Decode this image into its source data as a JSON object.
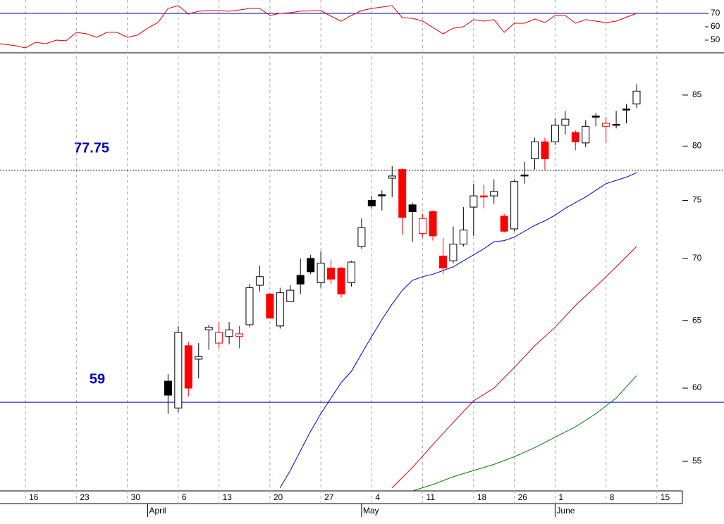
{
  "chart_data": [
    {
      "type": "line",
      "ylim": [
        40.5,
        80
      ],
      "yticks": [
        50,
        60,
        70
      ],
      "hlines": [
        {
          "value": 70,
          "color": "#0000cc"
        }
      ],
      "series": [
        {
          "color": "#e00000",
          "x": [
            -2.5,
            -1,
            0,
            1,
            2,
            3,
            4,
            5,
            6,
            7,
            8,
            9,
            10,
            11,
            12,
            13,
            14,
            15,
            16,
            17,
            18,
            19,
            20,
            21,
            22,
            23,
            24,
            25,
            26,
            27,
            29,
            30,
            31,
            32,
            33,
            34,
            36,
            37,
            38,
            39,
            41,
            42,
            43,
            44,
            45,
            46,
            47,
            48,
            49,
            50,
            51,
            52,
            53,
            54,
            55,
            56,
            57,
            58,
            60
          ],
          "values": [
            47.3,
            45.8,
            44.2,
            48.4,
            47.3,
            50.0,
            49.5,
            55.8,
            54.7,
            52.1,
            55.8,
            55.8,
            52.1,
            53.7,
            58.9,
            63.1,
            73.7,
            75.8,
            69.5,
            71.6,
            72.1,
            72.1,
            71.6,
            72.6,
            73.7,
            73.7,
            68.4,
            70.0,
            70.5,
            71.6,
            72.1,
            67.9,
            64.2,
            68.4,
            72.1,
            73.7,
            75.8,
            66.8,
            66.3,
            64.2,
            54.7,
            58.9,
            60.0,
            65.3,
            64.2,
            65.3,
            55.8,
            62.6,
            62.6,
            65.8,
            63.1,
            68.4,
            68.4,
            62.6,
            65.3,
            64.2,
            63.1,
            64.2,
            70.0
          ]
        }
      ]
    },
    {
      "type": "candlestick",
      "log_scale": true,
      "xlim": [
        -2.5,
        64.5
      ],
      "ylim": [
        53.1,
        89.3
      ],
      "yticks": [
        55,
        60,
        65,
        70,
        75,
        80,
        85
      ],
      "xticks": [
        {
          "value": 0,
          "label": "16"
        },
        {
          "value": 5,
          "label": "23"
        },
        {
          "value": 10,
          "label": "30"
        },
        {
          "value": 15,
          "label": "6"
        },
        {
          "value": 19,
          "label": "13"
        },
        {
          "value": 24,
          "label": "20"
        },
        {
          "value": 29,
          "label": "27"
        },
        {
          "value": 34,
          "label": "4"
        },
        {
          "value": 39,
          "label": "11"
        },
        {
          "value": 44,
          "label": "18"
        },
        {
          "value": 48,
          "label": "26"
        },
        {
          "value": 52,
          "label": "1"
        },
        {
          "value": 57,
          "label": "8"
        },
        {
          "value": 62,
          "label": "15"
        }
      ],
      "month_ticks": [
        {
          "value": 12,
          "label": "April"
        },
        {
          "value": 33,
          "label": "May"
        },
        {
          "value": 52,
          "label": "June"
        }
      ],
      "grid": true,
      "hlines": [
        {
          "value": 77.75,
          "color": "#000000",
          "dashed": true
        },
        {
          "value": 59,
          "color": "#0000cc",
          "dashed": false
        }
      ],
      "x": [
        14,
        15,
        16,
        17,
        18,
        19,
        20,
        21,
        22,
        23,
        24,
        25,
        26,
        27,
        28,
        29,
        30,
        31,
        32,
        33,
        34,
        35,
        36,
        37,
        38,
        39,
        40,
        41,
        42,
        43,
        44,
        45,
        46,
        47,
        48,
        49,
        50,
        51,
        52,
        53,
        54,
        55,
        56,
        57,
        58,
        59,
        60
      ],
      "open": [
        60.5,
        58.6,
        63.1,
        62.1,
        64.3,
        63.3,
        63.8,
        63.8,
        64.7,
        67.8,
        67.1,
        64.6,
        66.5,
        68.6,
        70.0,
        68.0,
        69.2,
        69.2,
        68.0,
        71.0,
        75.0,
        75.5,
        77.0,
        77.8,
        74.6,
        73.4,
        74.0,
        70.2,
        69.8,
        71.2,
        74.4,
        75.4,
        75.4,
        73.6,
        72.5,
        77.3,
        78.8,
        80.4,
        80.4,
        82.0,
        81.3,
        80.3,
        82.9,
        81.9,
        82.1,
        83.6,
        84.1
      ],
      "high": [
        61.0,
        64.6,
        63.4,
        63.3,
        64.7,
        64.9,
        64.9,
        64.6,
        67.9,
        69.4,
        67.2,
        67.6,
        67.8,
        70.0,
        70.3,
        70.6,
        69.9,
        69.3,
        69.8,
        73.4,
        75.4,
        75.9,
        78.1,
        77.9,
        74.8,
        73.8,
        74.1,
        71.7,
        72.7,
        74.4,
        76.5,
        76.4,
        76.9,
        73.8,
        76.9,
        78.5,
        80.8,
        80.8,
        82.7,
        83.4,
        81.5,
        82.5,
        83.2,
        82.8,
        83.4,
        84.1,
        86.1
      ],
      "low": [
        58.2,
        58.3,
        59.4,
        60.7,
        62.8,
        62.9,
        63.2,
        62.9,
        64.5,
        67.3,
        65.2,
        64.4,
        66.5,
        67.1,
        68.7,
        67.6,
        67.9,
        66.8,
        67.7,
        70.8,
        74.3,
        74.1,
        75.3,
        72.0,
        71.4,
        71.8,
        71.5,
        68.7,
        69.6,
        71.0,
        71.9,
        74.3,
        74.7,
        72.2,
        72.3,
        76.5,
        77.8,
        77.8,
        80.1,
        81.1,
        79.6,
        79.9,
        81.9,
        80.3,
        81.7,
        82.2,
        83.7
      ],
      "close": [
        59.5,
        64.1,
        60.0,
        62.3,
        64.5,
        64.1,
        64.3,
        64.0,
        67.6,
        68.5,
        65.2,
        67.2,
        67.4,
        67.9,
        68.9,
        69.6,
        68.3,
        67.1,
        69.7,
        72.6,
        74.5,
        75.5,
        77.2,
        73.5,
        74.0,
        72.1,
        71.9,
        69.2,
        71.2,
        72.4,
        75.4,
        75.3,
        75.8,
        72.3,
        76.7,
        77.3,
        80.4,
        78.8,
        82.0,
        82.6,
        80.4,
        81.9,
        82.8,
        82.2,
        82.1,
        83.5,
        85.4
      ],
      "fills": [
        "#000000",
        "#ffffff",
        "#ff0000",
        "#ffffff",
        "#ffffff",
        "#ffffff",
        "#ffffff",
        "#ffffff",
        "#ffffff",
        "#ffffff",
        "#ff0000",
        "#ffffff",
        "#ffffff",
        "#000000",
        "#000000",
        "#ffffff",
        "#ff0000",
        "#ff0000",
        "#ffffff",
        "#ffffff",
        "#000000",
        "#000000",
        "#ffffff",
        "#ff0000",
        "#000000",
        "#ffffff",
        "#ff0000",
        "#ff0000",
        "#ffffff",
        "#ffffff",
        "#ffffff",
        "#ff0000",
        "#ffffff",
        "#ff0000",
        "#ffffff",
        "#000000",
        "#ffffff",
        "#ff0000",
        "#ffffff",
        "#ffffff",
        "#ff0000",
        "#ffffff",
        "#000000",
        "#ffffff",
        "#000000",
        "#000000",
        "#ffffff"
      ],
      "edges": [
        "#000000",
        "#000000",
        "#ff0000",
        "#000000",
        "#000000",
        "#ff0000",
        "#000000",
        "#ff0000",
        "#000000",
        "#000000",
        "#ff0000",
        "#000000",
        "#000000",
        "#000000",
        "#000000",
        "#000000",
        "#ff0000",
        "#ff0000",
        "#000000",
        "#000000",
        "#000000",
        "#000000",
        "#000000",
        "#ff0000",
        "#000000",
        "#ff0000",
        "#ff0000",
        "#ff0000",
        "#000000",
        "#000000",
        "#000000",
        "#ff0000",
        "#000000",
        "#ff0000",
        "#000000",
        "#000000",
        "#000000",
        "#ff0000",
        "#000000",
        "#000000",
        "#ff0000",
        "#000000",
        "#000000",
        "#ff0000",
        "#000000",
        "#000000",
        "#000000"
      ],
      "series": [
        {
          "color": "#0000cc",
          "x": [
            25,
            26,
            27,
            28,
            29,
            30,
            31,
            32,
            33,
            34,
            35,
            36,
            37,
            38,
            39,
            40,
            41,
            42,
            43,
            44,
            45,
            46,
            47,
            48,
            49,
            50,
            51,
            52,
            53,
            54,
            55,
            56,
            57,
            58,
            59,
            60
          ],
          "values": [
            53.3,
            54.4,
            55.7,
            57.0,
            58.2,
            59.3,
            60.4,
            61.2,
            62.5,
            63.8,
            65.1,
            66.3,
            67.4,
            68.2,
            68.5,
            68.7,
            69.0,
            69.3,
            69.8,
            70.3,
            70.8,
            71.4,
            71.5,
            71.8,
            72.3,
            72.8,
            73.2,
            73.7,
            74.3,
            74.8,
            75.3,
            75.9,
            76.5,
            76.8,
            77.1,
            77.5
          ]
        },
        {
          "color": "#e00000",
          "x": [
            36,
            38,
            40,
            42,
            44,
            46,
            48,
            50,
            52,
            54,
            56,
            58,
            60
          ],
          "values": [
            53.3,
            54.6,
            56.1,
            57.6,
            59.1,
            60.0,
            61.5,
            63.1,
            64.5,
            66.2,
            67.7,
            69.3,
            71.0
          ]
        },
        {
          "color": "#008000",
          "x": [
            38,
            40,
            42,
            44,
            46,
            48,
            50,
            52,
            54,
            56,
            58,
            60
          ],
          "values": [
            53.1,
            53.5,
            54.0,
            54.4,
            54.8,
            55.3,
            55.9,
            56.6,
            57.3,
            58.2,
            59.3,
            60.9
          ]
        }
      ]
    }
  ]
}
